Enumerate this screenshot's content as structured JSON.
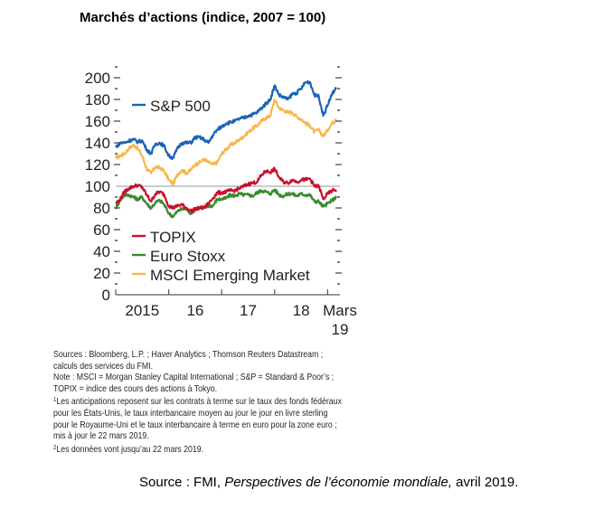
{
  "chart_data": {
    "type": "line",
    "title": "Marchés d’actions (indice, 2007 = 100)",
    "xlabel": "",
    "ylabel": "",
    "ylim": [
      0,
      200
    ],
    "yticks": [
      "0",
      "20",
      "40",
      "60",
      "80",
      "100",
      "120",
      "140",
      "160",
      "180",
      "200"
    ],
    "yticks_values": [
      0,
      20,
      40,
      60,
      80,
      100,
      120,
      140,
      160,
      180,
      200
    ],
    "xlim": [
      "2015-01",
      "2019-03"
    ],
    "xtick_labels": [
      "2015",
      "16",
      "17",
      "18",
      "Mars 19"
    ],
    "reference_line": 100,
    "grid": false,
    "legend": [
      {
        "name": "S&P 500",
        "placement": "top-left"
      },
      {
        "name": "TOPIX",
        "placement": "bottom-left"
      },
      {
        "name": "Euro Stoxx",
        "placement": "bottom-left"
      },
      {
        "name": "MSCI Emerging Market",
        "placement": "bottom-left"
      }
    ],
    "x": [
      "2015-01",
      "2015-02",
      "2015-03",
      "2015-04",
      "2015-05",
      "2015-06",
      "2015-07",
      "2015-08",
      "2015-09",
      "2015-10",
      "2015-11",
      "2015-12",
      "2016-01",
      "2016-02",
      "2016-03",
      "2016-04",
      "2016-05",
      "2016-06",
      "2016-07",
      "2016-08",
      "2016-09",
      "2016-10",
      "2016-11",
      "2016-12",
      "2017-01",
      "2017-02",
      "2017-03",
      "2017-04",
      "2017-05",
      "2017-06",
      "2017-07",
      "2017-08",
      "2017-09",
      "2017-10",
      "2017-11",
      "2017-12",
      "2018-01",
      "2018-02",
      "2018-03",
      "2018-04",
      "2018-05",
      "2018-06",
      "2018-07",
      "2018-08",
      "2018-09",
      "2018-10",
      "2018-11",
      "2018-12",
      "2019-01",
      "2019-02",
      "2019-03"
    ],
    "series": [
      {
        "name": "S&P 500",
        "color": "#1c63b7",
        "values": [
          136,
          140,
          140,
          142,
          143,
          141,
          142,
          134,
          130,
          139,
          140,
          137,
          128,
          126,
          135,
          140,
          140,
          140,
          145,
          145,
          143,
          140,
          147,
          152,
          155,
          158,
          159,
          160,
          162,
          163,
          165,
          166,
          168,
          172,
          176,
          180,
          193,
          184,
          182,
          180,
          185,
          186,
          190,
          196,
          196,
          184,
          183,
          165,
          175,
          185,
          191
        ]
      },
      {
        "name": "TOPIX",
        "color": "#c8102e",
        "values": [
          84,
          88,
          95,
          98,
          100,
          101,
          99,
          92,
          86,
          93,
          95,
          92,
          82,
          80,
          82,
          83,
          80,
          77,
          79,
          80,
          80,
          84,
          89,
          94,
          94,
          95,
          96,
          96,
          98,
          100,
          102,
          103,
          104,
          110,
          114,
          113,
          116,
          108,
          104,
          103,
          106,
          104,
          106,
          106,
          107,
          100,
          100,
          88,
          93,
          96,
          97
        ]
      },
      {
        "name": "Euro Stoxx",
        "color": "#3a8a2e",
        "values": [
          80,
          87,
          92,
          92,
          90,
          88,
          90,
          84,
          80,
          85,
          87,
          83,
          75,
          72,
          77,
          79,
          79,
          75,
          79,
          80,
          80,
          82,
          82,
          88,
          88,
          89,
          92,
          91,
          93,
          92,
          92,
          91,
          94,
          96,
          95,
          93,
          97,
          92,
          91,
          93,
          93,
          91,
          93,
          92,
          92,
          86,
          86,
          81,
          84,
          87,
          90
        ]
      },
      {
        "name": "MSCI Emerging Market",
        "color": "#f7b84b",
        "values": [
          126,
          128,
          130,
          135,
          138,
          135,
          128,
          116,
          112,
          118,
          117,
          114,
          106,
          102,
          111,
          115,
          112,
          115,
          120,
          122,
          125,
          122,
          120,
          122,
          130,
          134,
          138,
          140,
          143,
          146,
          150,
          153,
          156,
          160,
          163,
          165,
          180,
          172,
          170,
          168,
          168,
          164,
          162,
          158,
          156,
          150,
          152,
          146,
          152,
          158,
          162
        ]
      }
    ]
  },
  "notes": {
    "line1": "Sources : Bloomberg, L.P. ; Haver Analytics ; Thomson Reuters Datastream ;",
    "line2": "calculs des services du FMI.",
    "line3": "Note : MSCI = Morgan Stanley Capital International ; S&P = Standard & Poor’s ;",
    "line4": "TOPIX = indice des cours des actions à Tokyo.",
    "fn1_mark": "1",
    "line5": "Les anticipations reposent sur les contrats à terme sur le taux des fonds fédéraux",
    "line6": "pour les États-Unis, le taux interbancaire moyen au jour le jour en livre sterling",
    "line7": "pour le Royaume-Uni et le taux interbancaire à terme en euro pour la zone euro ;",
    "line8": "mis à jour le 22 mars 2019.",
    "fn2_mark": "2",
    "line9": "Les données vont jusqu’au 22 mars 2019."
  },
  "source": {
    "prefix": "Source : FMI, ",
    "publication": "Perspectives de l’économie mondiale,",
    "suffix": " avril 2019."
  }
}
